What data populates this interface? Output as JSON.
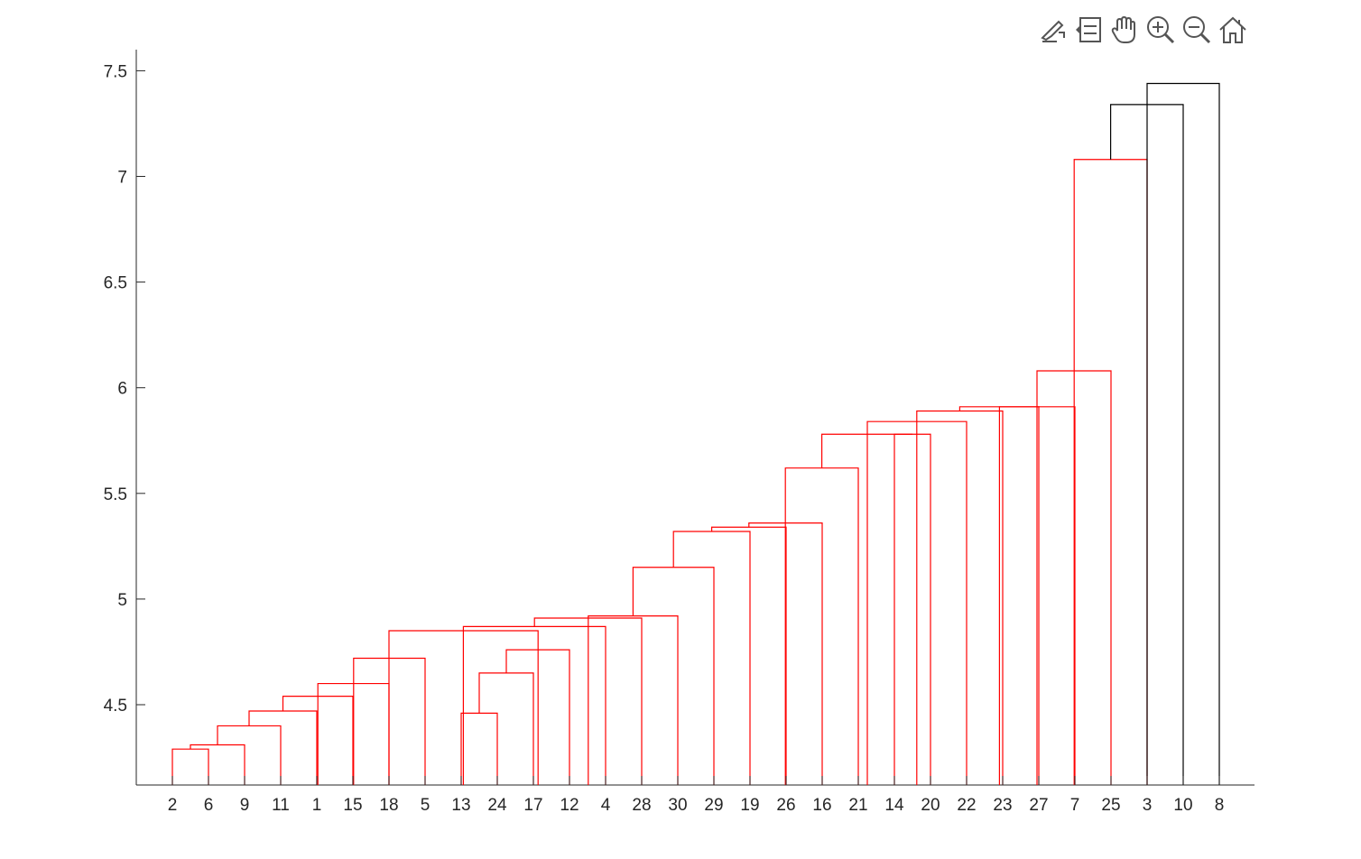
{
  "toolbar": {
    "buttons": [
      {
        "name": "brush-data-icon"
      },
      {
        "name": "data-tips-icon"
      },
      {
        "name": "pan-icon"
      },
      {
        "name": "zoom-in-icon"
      },
      {
        "name": "zoom-out-icon"
      },
      {
        "name": "home-icon"
      }
    ]
  },
  "chart_data": {
    "type": "dendrogram",
    "title": "",
    "xlabel": "",
    "ylabel": "",
    "ylim": [
      4.12,
      7.6
    ],
    "yticks": [
      4.5,
      5,
      5.5,
      6,
      6.5,
      7,
      7.5
    ],
    "ytick_labels": [
      "4.5",
      "5",
      "5.5",
      "6",
      "6.5",
      "7",
      "7.5"
    ],
    "leaf_order": [
      "2",
      "6",
      "9",
      "11",
      "1",
      "15",
      "18",
      "5",
      "13",
      "24",
      "17",
      "12",
      "4",
      "28",
      "30",
      "29",
      "19",
      "26",
      "16",
      "21",
      "14",
      "20",
      "22",
      "23",
      "27",
      "7",
      "25",
      "3",
      "10",
      "8"
    ],
    "leaf_baseline": 4.12,
    "above_threshold_color": "#000000",
    "cluster_color": "#ff0000",
    "links": [
      {
        "left_pos": 1,
        "right_pos": 2,
        "height": 4.29,
        "color": "#ff0000"
      },
      {
        "left_pos": 1.5,
        "right_pos": 3,
        "height": 4.31,
        "color": "#ff0000"
      },
      {
        "left_pos": 2.25,
        "right_pos": 4,
        "height": 4.4,
        "color": "#ff0000"
      },
      {
        "left_pos": 3.125,
        "right_pos": 5,
        "height": 4.47,
        "color": "#ff0000"
      },
      {
        "left_pos": 4.0625,
        "right_pos": 6,
        "height": 4.54,
        "color": "#ff0000"
      },
      {
        "left_pos": 5.03,
        "right_pos": 7,
        "height": 4.6,
        "color": "#ff0000"
      },
      {
        "left_pos": 6.02,
        "right_pos": 8,
        "height": 4.72,
        "color": "#ff0000"
      },
      {
        "left_pos": 9,
        "right_pos": 10,
        "height": 4.46,
        "color": "#ff0000"
      },
      {
        "left_pos": 9.5,
        "right_pos": 11,
        "height": 4.65,
        "color": "#ff0000"
      },
      {
        "left_pos": 10.25,
        "right_pos": 12,
        "height": 4.76,
        "color": "#ff0000"
      },
      {
        "left_pos": 7,
        "right_pos": 11.13,
        "height": 4.85,
        "color": "#ff0000"
      },
      {
        "left_pos": 9.06,
        "right_pos": 13,
        "height": 4.87,
        "color": "#ff0000"
      },
      {
        "left_pos": 11.03,
        "right_pos": 14,
        "height": 4.91,
        "color": "#ff0000"
      },
      {
        "left_pos": 12.52,
        "right_pos": 15,
        "height": 4.92,
        "color": "#ff0000"
      },
      {
        "left_pos": 13.76,
        "right_pos": 16,
        "height": 5.15,
        "color": "#ff0000"
      },
      {
        "left_pos": 14.88,
        "right_pos": 17,
        "height": 5.32,
        "color": "#ff0000"
      },
      {
        "left_pos": 15.94,
        "right_pos": 18,
        "height": 5.34,
        "color": "#ff0000"
      },
      {
        "left_pos": 16.97,
        "right_pos": 19,
        "height": 5.36,
        "color": "#ff0000"
      },
      {
        "left_pos": 17.98,
        "right_pos": 20,
        "height": 5.62,
        "color": "#ff0000"
      },
      {
        "left_pos": 21,
        "right_pos": 22,
        "height": 5.78,
        "color": "#ff0000"
      },
      {
        "left_pos": 18.99,
        "right_pos": 21.5,
        "height": 5.78,
        "color": "#ff0000"
      },
      {
        "left_pos": 20.25,
        "right_pos": 23,
        "height": 5.84,
        "color": "#ff0000"
      },
      {
        "left_pos": 21.62,
        "right_pos": 24,
        "height": 5.89,
        "color": "#ff0000"
      },
      {
        "left_pos": 22.81,
        "right_pos": 25,
        "height": 5.91,
        "color": "#ff0000"
      },
      {
        "left_pos": 23.91,
        "right_pos": 26,
        "height": 5.91,
        "color": "#ff0000"
      },
      {
        "left_pos": 24.95,
        "right_pos": 27,
        "height": 6.08,
        "color": "#ff0000"
      },
      {
        "left_pos": 25.98,
        "right_pos": 28,
        "height": 7.08,
        "color": "#ff0000"
      },
      {
        "left_pos": 26.99,
        "right_pos": 29,
        "height": 7.34,
        "color": "#000000"
      },
      {
        "left_pos": 28,
        "right_pos": 30,
        "height": 7.44,
        "color": "#000000"
      }
    ]
  }
}
